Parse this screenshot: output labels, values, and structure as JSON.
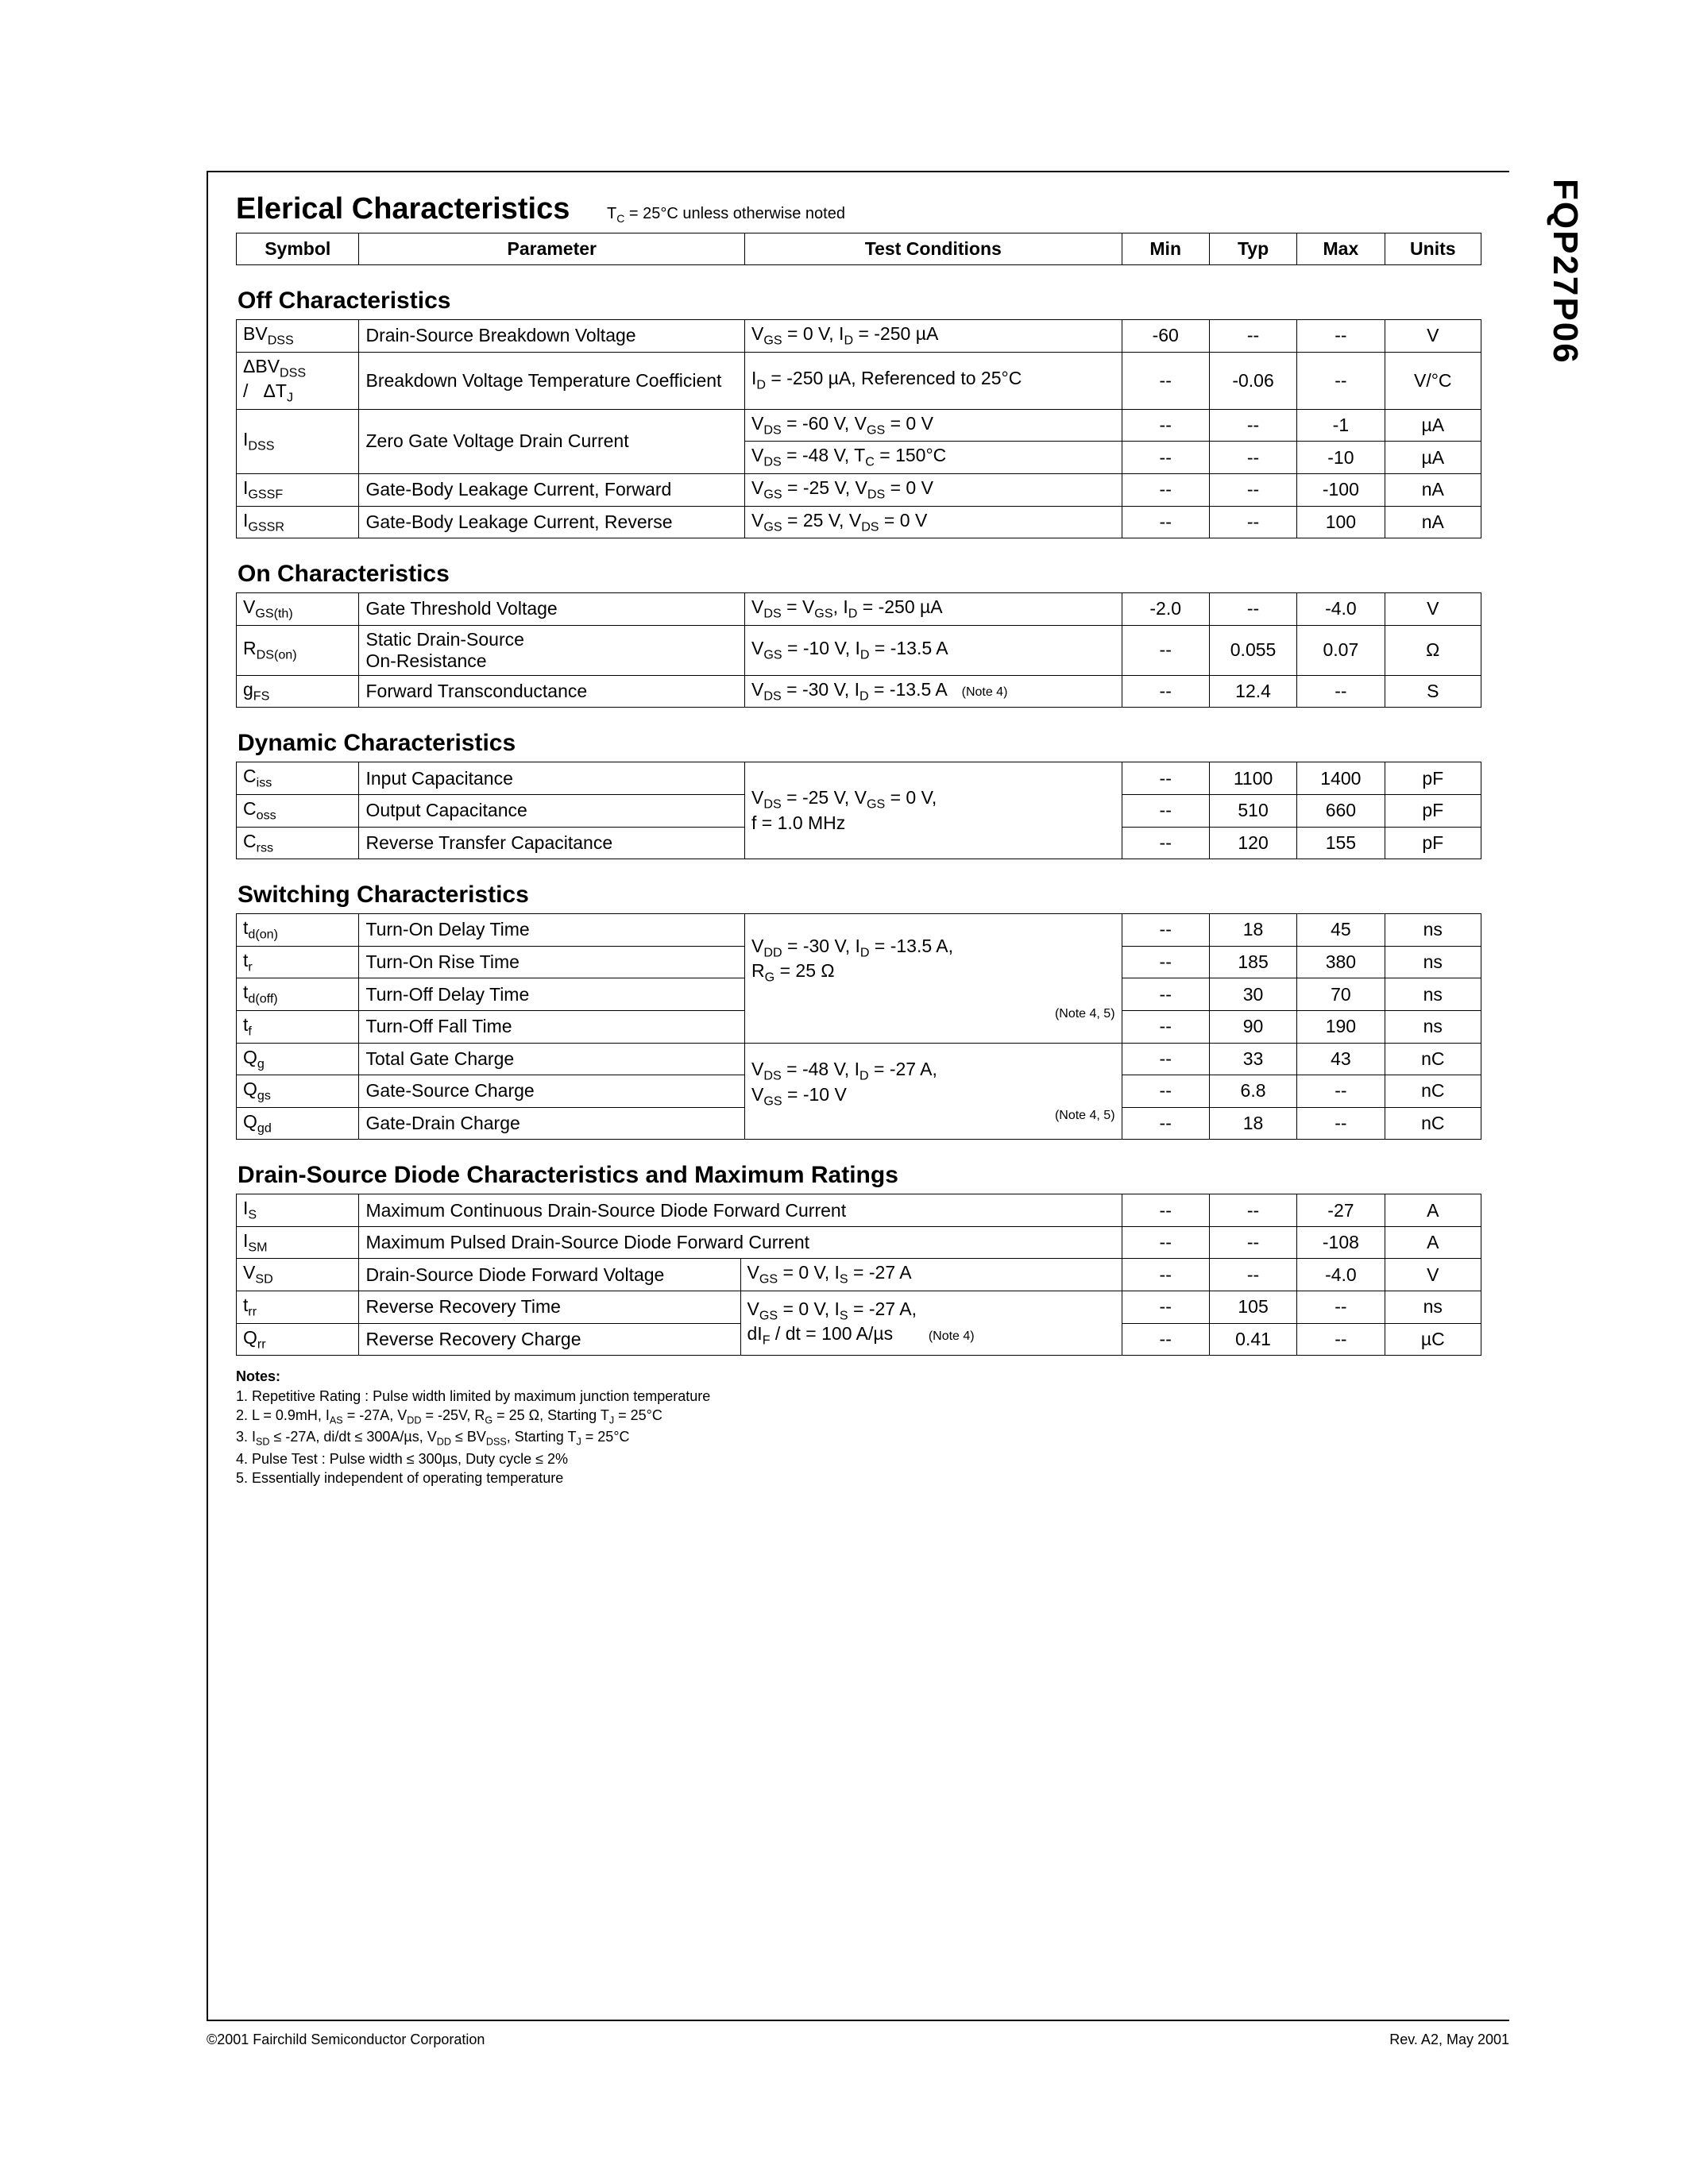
{
  "part_number": "FQP27P06",
  "title": "Elerical Characteristics",
  "title_note_html": "T<span class='sub'>C</span> = 25°C unless otherwise noted",
  "columns": [
    "Symbol",
    "Parameter",
    "Test Conditions",
    "Min",
    "Typ",
    "Max",
    "Units"
  ],
  "sections": [
    {
      "title": "Off Characteristics",
      "rows": [
        {
          "sym": "BV<span class='sub'>DSS</span>",
          "param": "Drain-Source Breakdown Voltage",
          "cond": "V<span class='sub'>GS</span> = 0 V, I<span class='sub'>D</span> = -250 µA",
          "min": "-60",
          "typ": "--",
          "max": "--",
          "units": "V"
        },
        {
          "sym": "ΔBV<span class='sub'>DSS</span><br>/&nbsp;&nbsp;&nbsp;ΔT<span class='sub'>J</span>",
          "param": "Breakdown Voltage Temperature Coefficient",
          "cond": "I<span class='sub'>D</span> = -250 µA, Referenced to 25°C",
          "min": "--",
          "typ": "-0.06",
          "max": "--",
          "units": "V/°C"
        },
        {
          "sym": "I<span class='sub'>DSS</span>",
          "sym_rowspan": 2,
          "param": "Zero Gate Voltage Drain Current",
          "param_rowspan": 2,
          "cond": "V<span class='sub'>DS</span> = -60 V, V<span class='sub'>GS</span> = 0 V",
          "min": "--",
          "typ": "--",
          "max": "-1",
          "units": "µA"
        },
        {
          "cond": "V<span class='sub'>DS</span> = -48 V, T<span class='sub'>C</span> = 150°C",
          "min": "--",
          "typ": "--",
          "max": "-10",
          "units": "µA"
        },
        {
          "sym": "I<span class='sub'>GSSF</span>",
          "param": "Gate-Body Leakage Current, Forward",
          "cond": "V<span class='sub'>GS</span> = -25 V, V<span class='sub'>DS</span> = 0 V",
          "min": "--",
          "typ": "--",
          "max": "-100",
          "units": "nA"
        },
        {
          "sym": "I<span class='sub'>GSSR</span>",
          "param": "Gate-Body Leakage Current, Reverse",
          "cond": "V<span class='sub'>GS</span> = 25 V, V<span class='sub'>DS</span> = 0 V",
          "min": "--",
          "typ": "--",
          "max": "100",
          "units": "nA"
        }
      ]
    },
    {
      "title": "On Characteristics",
      "rows": [
        {
          "sym": "V<span class='sub'>GS(th)</span>",
          "param": "Gate Threshold Voltage",
          "cond": "V<span class='sub'>DS</span> = V<span class='sub'>GS</span>, I<span class='sub'>D</span> = -250 µA",
          "min": "-2.0",
          "typ": "--",
          "max": "-4.0",
          "units": "V"
        },
        {
          "sym": "R<span class='sub'>DS(on)</span>",
          "param": "Static Drain-Source<br>On-Resistance",
          "cond": "V<span class='sub'>GS</span> = -10 V, I<span class='sub'>D</span> = -13.5 A",
          "min": "--",
          "typ": "0.055",
          "max": "0.07",
          "units": "Ω"
        },
        {
          "sym": "g<span class='sub'>FS</span>",
          "param": "Forward Transconductance",
          "cond": "V<span class='sub'>DS</span> = -30 V, I<span class='sub'>D</span> = -13.5 A &nbsp;&nbsp;<span class='note-ref'>(Note 4)</span>",
          "min": "--",
          "typ": "12.4",
          "max": "--",
          "units": "S"
        }
      ]
    },
    {
      "title": "Dynamic Characteristics",
      "rows": [
        {
          "sym": "C<span class='sub'>iss</span>",
          "param": "Input Capacitance",
          "cond": "V<span class='sub'>DS</span> = -25 V, V<span class='sub'>GS</span> = 0 V,<br>f = 1.0 MHz",
          "cond_rowspan": 3,
          "min": "--",
          "typ": "1100",
          "max": "1400",
          "units": "pF"
        },
        {
          "sym": "C<span class='sub'>oss</span>",
          "param": "Output Capacitance",
          "min": "--",
          "typ": "510",
          "max": "660",
          "units": "pF"
        },
        {
          "sym": "C<span class='sub'>rss</span>",
          "param": "Reverse Transfer Capacitance",
          "min": "--",
          "typ": "120",
          "max": "155",
          "units": "pF"
        }
      ]
    },
    {
      "title": "Switching Characteristics",
      "rows": [
        {
          "sym": "t<span class='sub'>d(on)</span>",
          "param": "Turn-On Delay Time",
          "cond": "V<span class='sub'>DD</span> = -30 V, I<span class='sub'>D</span> = -13.5 A,<br>R<span class='sub'>G</span> = 25 Ω<br><br><span style='float:right' class='note-ref'>(Note 4, 5)</span>",
          "cond_rowspan": 4,
          "min": "--",
          "typ": "18",
          "max": "45",
          "units": "ns"
        },
        {
          "sym": "t<span class='sub'>r</span>",
          "param": "Turn-On Rise Time",
          "min": "--",
          "typ": "185",
          "max": "380",
          "units": "ns"
        },
        {
          "sym": "t<span class='sub'>d(off)</span>",
          "param": "Turn-Off Delay Time",
          "min": "--",
          "typ": "30",
          "max": "70",
          "units": "ns"
        },
        {
          "sym": "t<span class='sub'>f</span>",
          "param": "Turn-Off Fall Time",
          "min": "--",
          "typ": "90",
          "max": "190",
          "units": "ns"
        },
        {
          "sym": "Q<span class='sub'>g</span>",
          "param": "Total Gate Charge",
          "cond": "V<span class='sub'>DS</span> = -48 V, I<span class='sub'>D</span> = -27 A,<br>V<span class='sub'>GS</span> = -10 V<br><span style='float:right' class='note-ref'>(Note 4, 5)</span>",
          "cond_rowspan": 3,
          "min": "--",
          "typ": "33",
          "max": "43",
          "units": "nC"
        },
        {
          "sym": "Q<span class='sub'>gs</span>",
          "param": "Gate-Source Charge",
          "min": "--",
          "typ": "6.8",
          "max": "--",
          "units": "nC"
        },
        {
          "sym": "Q<span class='sub'>gd</span>",
          "param": "Gate-Drain Charge",
          "min": "--",
          "typ": "18",
          "max": "--",
          "units": "nC"
        }
      ]
    },
    {
      "title": "Drain-Source Diode Characteristics and Maximum Ratings",
      "rows": [
        {
          "sym": "I<span class='sub'>S</span>",
          "param": "Maximum Continuous Drain-Source Diode Forward Current",
          "param_colspan": 2,
          "min": "--",
          "typ": "--",
          "max": "-27",
          "units": "A"
        },
        {
          "sym": "I<span class='sub'>SM</span>",
          "param": "Maximum Pulsed Drain-Source Diode Forward Current",
          "param_colspan": 2,
          "min": "--",
          "typ": "--",
          "max": "-108",
          "units": "A"
        },
        {
          "sym": "V<span class='sub'>SD</span>",
          "param": "Drain-Source Diode Forward Voltage",
          "cond": "V<span class='sub'>GS</span> = 0 V, I<span class='sub'>S</span> = -27 A",
          "min": "--",
          "typ": "--",
          "max": "-4.0",
          "units": "V"
        },
        {
          "sym": "t<span class='sub'>rr</span>",
          "param": "Reverse Recovery Time",
          "cond": "V<span class='sub'>GS</span> = 0 V, I<span class='sub'>S</span> = -27 A,<br>dI<span class='sub'>F</span> / dt = 100 A/µs&nbsp;&nbsp;&nbsp;&nbsp;&nbsp;&nbsp;&nbsp;<span class='note-ref'>(Note 4)</span>",
          "cond_rowspan": 2,
          "min": "--",
          "typ": "105",
          "max": "--",
          "units": "ns"
        },
        {
          "sym": "Q<span class='sub'>rr</span>",
          "param": "Reverse Recovery Charge",
          "min": "--",
          "typ": "0.41",
          "max": "--",
          "units": "µC"
        }
      ]
    }
  ],
  "notes_title": "Notes:",
  "notes": [
    "1. Repetitive Rating : Pulse width limited by maximum junction temperature",
    "2. L = 0.9mH, I<span class='sub'>AS</span> = -27A, V<span class='sub'>DD</span> = -25V, R<span class='sub'>G</span> = 25 Ω, Starting  T<span class='sub'>J</span> = 25°C",
    "3. I<span class='sub'>SD</span> ≤ -27A, di/dt ≤ 300A/µs, V<span class='sub'>DD</span> ≤ BV<span class='sub'>DSS</span>, Starting  T<span class='sub'>J</span> = 25°C",
    "4. Pulse Test : Pulse width ≤ 300µs, Duty cycle ≤ 2%",
    "5. Essentially independent of operating temperature"
  ],
  "footer_left": "©2001 Fairchild Semiconductor Corporation",
  "footer_right": "Rev. A2, May 2001"
}
